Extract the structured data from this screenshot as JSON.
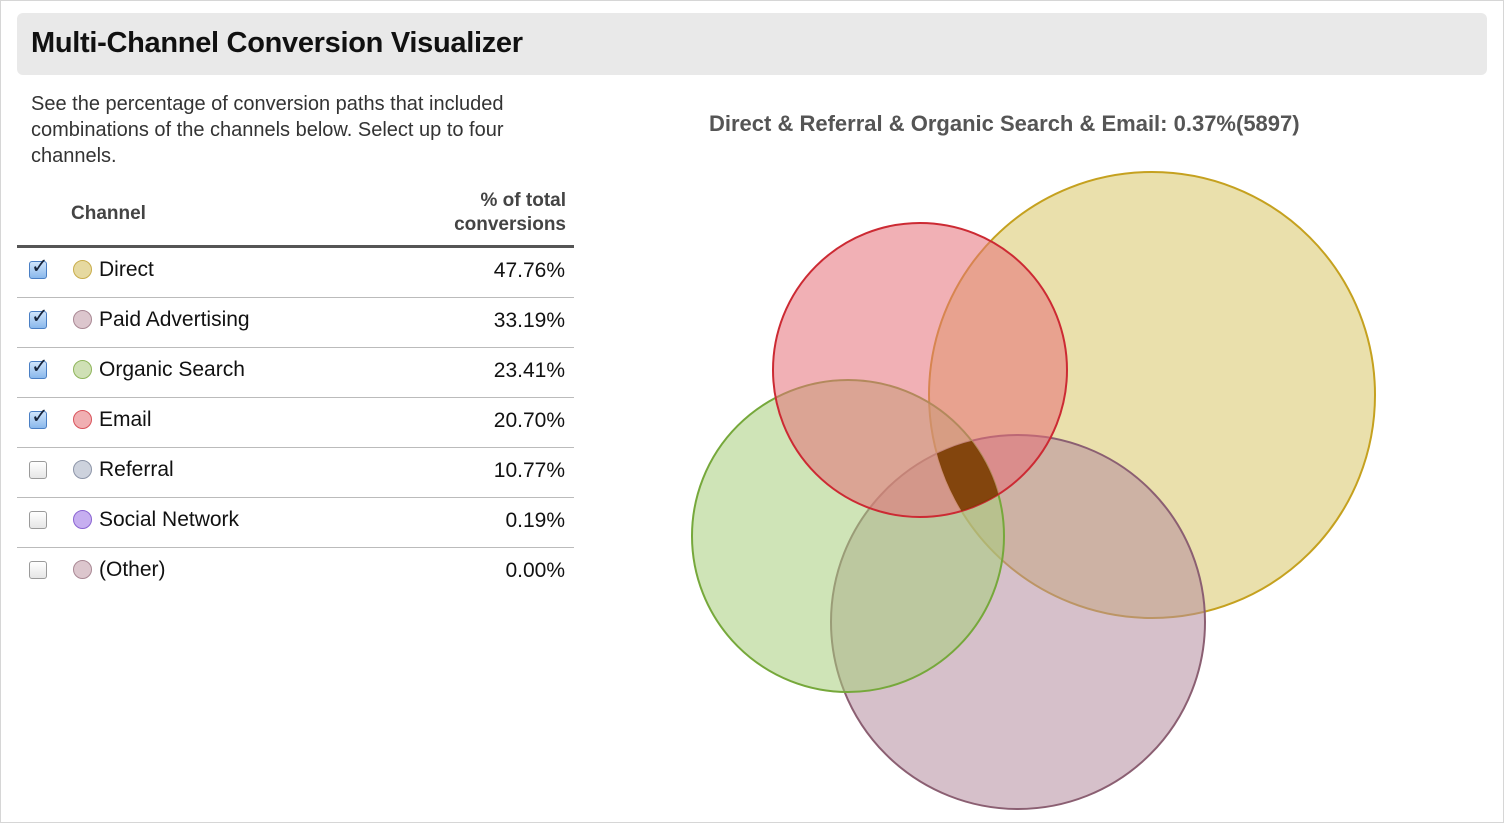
{
  "header": {
    "title": "Multi-Channel Conversion Visualizer"
  },
  "intro": {
    "text": "See the percentage of conversion paths that included combinations of the channels below. Select up to four channels."
  },
  "table": {
    "col_channel": "Channel",
    "col_pct_line1": "% of total",
    "col_pct_line2": "conversions",
    "rows": [
      {
        "label": "Direct",
        "pct": "47.76%",
        "checked": true,
        "color": "#e6d9a0",
        "border": "#c9ad4b"
      },
      {
        "label": "Paid Advertising",
        "pct": "33.19%",
        "checked": true,
        "color": "#dcc6cd",
        "border": "#a98894"
      },
      {
        "label": "Organic Search",
        "pct": "23.41%",
        "checked": true,
        "color": "#cfe0b5",
        "border": "#8fb55b"
      },
      {
        "label": "Email",
        "pct": "20.70%",
        "checked": true,
        "color": "#f0afb2",
        "border": "#d9535b"
      },
      {
        "label": "Referral",
        "pct": "10.77%",
        "checked": false,
        "color": "#cdd2dd",
        "border": "#8d95a8"
      },
      {
        "label": "Social Network",
        "pct": "0.19%",
        "checked": false,
        "color": "#c6aef0",
        "border": "#8a64d2"
      },
      {
        "label": "(Other)",
        "pct": "0.00%",
        "checked": false,
        "color": "#dcc6cd",
        "border": "#a98894"
      }
    ]
  },
  "venn": {
    "caption": "Direct & Referral & Organic Search & Email: 0.37%(5897)",
    "sets": [
      {
        "channel": "Direct",
        "fill": "#d9c667",
        "stroke": "#c5a11f",
        "share": 47.76
      },
      {
        "channel": "Paid Advertising",
        "fill": "#b58c9e",
        "stroke": "#8b5f72",
        "share": 33.19
      },
      {
        "channel": "Organic Search",
        "fill": "#a8cd7c",
        "stroke": "#76a83b",
        "share": 23.41
      },
      {
        "channel": "Email",
        "fill": "#e66f78",
        "stroke": "#cc2a33",
        "share": 20.7
      }
    ],
    "intersection_color": "#7a3c00"
  }
}
